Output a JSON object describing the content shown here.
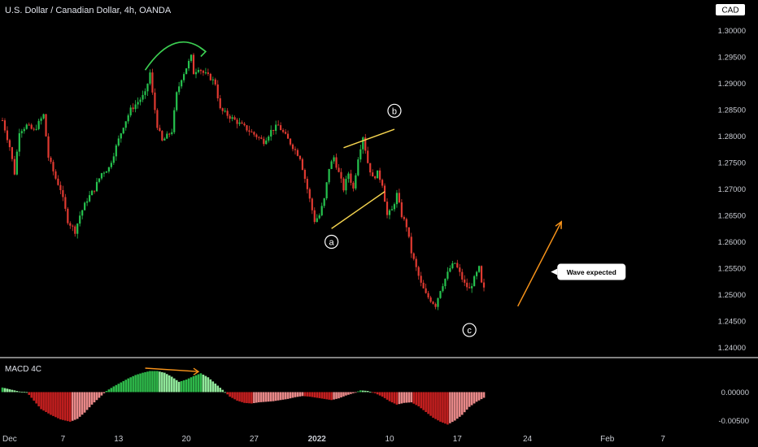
{
  "header": {
    "title": "U.S. Dollar / Canadian Dollar, 4h, OANDA",
    "currency_badge": "CAD"
  },
  "indicator": {
    "name": "MACD 4C"
  },
  "chart_data": [
    {
      "type": "candlestick",
      "title": "U.S. Dollar / Canadian Dollar, 4h, OANDA",
      "ylim": [
        1.239,
        1.303
      ],
      "y_ticks": [
        "1.30000",
        "1.29500",
        "1.29000",
        "1.28500",
        "1.28000",
        "1.27500",
        "1.27000",
        "1.26500",
        "1.26000",
        "1.25500",
        "1.25000",
        "1.24500",
        "1.24000"
      ],
      "x_ticks": [
        {
          "label": "Dec",
          "bar": 0
        },
        {
          "label": "7",
          "bar": 25
        },
        {
          "label": "13",
          "bar": 48
        },
        {
          "label": "20",
          "bar": 76
        },
        {
          "label": "27",
          "bar": 104
        },
        {
          "label": "2022",
          "bar": 130
        },
        {
          "label": "10",
          "bar": 160
        },
        {
          "label": "17",
          "bar": 188
        },
        {
          "label": "24",
          "bar": 217
        },
        {
          "label": "Feb",
          "bar": 250
        },
        {
          "label": "7",
          "bar": 273
        }
      ],
      "grid": false,
      "close_path": [
        [
          0,
          1.283
        ],
        [
          3,
          1.278
        ],
        [
          5,
          1.273
        ],
        [
          7,
          1.281
        ],
        [
          10,
          1.282
        ],
        [
          13,
          1.281
        ],
        [
          17,
          1.284
        ],
        [
          19,
          1.276
        ],
        [
          22,
          1.272
        ],
        [
          24,
          1.27
        ],
        [
          27,
          1.264
        ],
        [
          30,
          1.262
        ],
        [
          32,
          1.265
        ],
        [
          35,
          1.268
        ],
        [
          38,
          1.27
        ],
        [
          41,
          1.273
        ],
        [
          44,
          1.274
        ],
        [
          47,
          1.278
        ],
        [
          50,
          1.282
        ],
        [
          53,
          1.285
        ],
        [
          55,
          1.286
        ],
        [
          57,
          1.287
        ],
        [
          59,
          1.288
        ],
        [
          61,
          1.292
        ],
        [
          62,
          1.288
        ],
        [
          64,
          1.282
        ],
        [
          66,
          1.279
        ],
        [
          68,
          1.28
        ],
        [
          70,
          1.281
        ],
        [
          72,
          1.288
        ],
        [
          74,
          1.291
        ],
        [
          76,
          1.293
        ],
        [
          78,
          1.295
        ],
        [
          79,
          1.292
        ],
        [
          81,
          1.293
        ],
        [
          83,
          1.292
        ],
        [
          86,
          1.291
        ],
        [
          88,
          1.29
        ],
        [
          90,
          1.285
        ],
        [
          93,
          1.284
        ],
        [
          96,
          1.283
        ],
        [
          99,
          1.282
        ],
        [
          102,
          1.281
        ],
        [
          105,
          1.28
        ],
        [
          108,
          1.279
        ],
        [
          111,
          1.281
        ],
        [
          114,
          1.282
        ],
        [
          117,
          1.28
        ],
        [
          120,
          1.278
        ],
        [
          123,
          1.276
        ],
        [
          126,
          1.27
        ],
        [
          129,
          1.264
        ],
        [
          131,
          1.265
        ],
        [
          133,
          1.268
        ],
        [
          135,
          1.274
        ],
        [
          137,
          1.276
        ],
        [
          139,
          1.273
        ],
        [
          141,
          1.27
        ],
        [
          143,
          1.273
        ],
        [
          145,
          1.27
        ],
        [
          147,
          1.276
        ],
        [
          149,
          1.28
        ],
        [
          151,
          1.275
        ],
        [
          153,
          1.272
        ],
        [
          155,
          1.273
        ],
        [
          157,
          1.271
        ],
        [
          159,
          1.265
        ],
        [
          161,
          1.266
        ],
        [
          163,
          1.269
        ],
        [
          165,
          1.265
        ],
        [
          167,
          1.263
        ],
        [
          169,
          1.258
        ],
        [
          171,
          1.255
        ],
        [
          173,
          1.252
        ],
        [
          175,
          1.25
        ],
        [
          177,
          1.249
        ],
        [
          179,
          1.248
        ],
        [
          181,
          1.251
        ],
        [
          183,
          1.253
        ],
        [
          185,
          1.255
        ],
        [
          187,
          1.256
        ],
        [
          189,
          1.254
        ],
        [
          191,
          1.252
        ],
        [
          193,
          1.251
        ],
        [
          195,
          1.253
        ],
        [
          197,
          1.255
        ],
        [
          198,
          1.252
        ],
        [
          199,
          1.251
        ]
      ],
      "annotations": [
        {
          "label": "a",
          "bar": 136,
          "price": 1.26
        },
        {
          "label": "b",
          "bar": 162,
          "price": 1.2848
        },
        {
          "label": "c",
          "bar": 193,
          "price": 1.2433
        },
        {
          "label": "Wave expected",
          "bar": 230,
          "price": 1.2543
        }
      ],
      "drawings": [
        {
          "type": "line",
          "color": "#f5d44f",
          "from": [
            136,
            1.2625
          ],
          "to": [
            158,
            1.2695
          ]
        },
        {
          "type": "line",
          "color": "#f5d44f",
          "from": [
            141,
            1.2778
          ],
          "to": [
            162,
            1.2813
          ]
        },
        {
          "type": "arrow",
          "color": "#f7931a",
          "from": [
            213,
            1.2478
          ],
          "to": [
            231,
            1.2638
          ]
        },
        {
          "type": "curved-arrow",
          "color": "#3ccf52",
          "from": [
            59,
            1.2925
          ],
          "to": [
            84,
            1.296
          ]
        }
      ]
    },
    {
      "type": "histogram",
      "name": "MACD 4C",
      "ylim": [
        -0.0065,
        0.0052
      ],
      "y_ticks": [
        "0.00000",
        "-0.00500"
      ],
      "x": [
        0,
        4,
        7,
        10,
        13,
        16,
        20,
        24,
        28,
        31,
        34,
        37,
        40,
        43,
        46,
        49,
        52,
        55,
        58,
        61,
        64,
        67,
        70,
        73,
        76,
        79,
        82,
        85,
        88,
        91,
        94,
        97,
        100,
        103,
        106,
        109,
        112,
        115,
        118,
        121,
        124,
        127,
        130,
        133,
        136,
        139,
        142,
        145,
        148,
        151,
        154,
        157,
        160,
        163,
        166,
        169,
        172,
        175,
        178,
        181,
        184,
        187,
        190,
        193,
        196,
        199
      ],
      "values": [
        0.0008,
        0.0004,
        0.0001,
        0.0,
        -0.0015,
        -0.003,
        -0.004,
        -0.0048,
        -0.0052,
        -0.0047,
        -0.0036,
        -0.0022,
        -0.001,
        0.0002,
        0.001,
        0.0017,
        0.0024,
        0.003,
        0.0034,
        0.0037,
        0.0037,
        0.0034,
        0.0027,
        0.0018,
        0.0022,
        0.0028,
        0.0033,
        0.0026,
        0.0015,
        0.0004,
        -0.0008,
        -0.0015,
        -0.0019,
        -0.002,
        -0.0018,
        -0.0017,
        -0.0016,
        -0.0014,
        -0.0012,
        -0.0009,
        -0.0007,
        -0.0008,
        -0.001,
        -0.0012,
        -0.0014,
        -0.0011,
        -0.0006,
        -0.0002,
        0.0003,
        0.0002,
        -0.0002,
        -0.0008,
        -0.0016,
        -0.0022,
        -0.0019,
        -0.0018,
        -0.0025,
        -0.0035,
        -0.0045,
        -0.0052,
        -0.0057,
        -0.005,
        -0.004,
        -0.0026,
        -0.0017,
        -0.001
      ],
      "annotations": [
        {
          "type": "arrow",
          "color": "#f7931a",
          "from": [
            59,
            0.0042
          ],
          "to": [
            81,
            0.0036
          ]
        }
      ]
    }
  ],
  "colors": {
    "background": "#000000",
    "bull": "#26c24e",
    "bear": "#e03a31",
    "axis_text": "#c9ccd3",
    "separator": "#d0d0d0",
    "macd_pos_strong": "#2eb84a",
    "macd_pos_weak": "#90e89a",
    "macd_neg_strong": "#c41f1f",
    "macd_neg_weak": "#e88888"
  }
}
